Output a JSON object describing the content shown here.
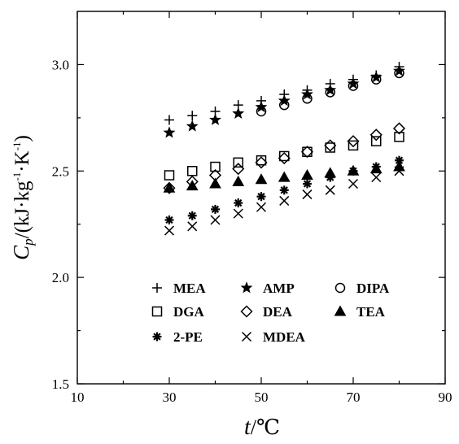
{
  "chart_data": {
    "type": "scatter",
    "xlabel": "t/°C",
    "ylabel": "Cp/(kJ·kg-1·K-1)",
    "xlim": [
      10,
      90
    ],
    "ylim": [
      1.5,
      3.25
    ],
    "xticks": [
      10,
      30,
      50,
      70,
      90
    ],
    "xticks_minor": [
      20,
      40,
      60,
      80
    ],
    "yticks": [
      1.5,
      2.0,
      2.5,
      3.0
    ],
    "yticks_minor": [
      1.75,
      2.25,
      2.75
    ],
    "xtick_labels": [
      "10",
      "30",
      "50",
      "70",
      "90"
    ],
    "ytick_labels": [
      "1.5",
      "2.0",
      "2.5",
      "3.0"
    ],
    "grid": false,
    "legend_position": "bottom-center",
    "x": [
      30,
      35,
      40,
      45,
      50,
      55,
      60,
      65,
      70,
      75,
      80
    ],
    "series": [
      {
        "name": "MEA",
        "marker": "plus",
        "values": [
          2.74,
          2.76,
          2.78,
          2.81,
          2.83,
          2.86,
          2.88,
          2.91,
          2.93,
          2.95,
          2.99
        ]
      },
      {
        "name": "AMP",
        "marker": "star",
        "values": [
          2.68,
          2.71,
          2.74,
          2.77,
          2.8,
          2.83,
          2.86,
          2.88,
          2.91,
          2.94,
          2.97
        ]
      },
      {
        "name": "DIPA",
        "marker": "circle",
        "x": [
          50,
          55,
          60,
          65,
          70,
          75,
          80
        ],
        "values": [
          2.78,
          2.81,
          2.84,
          2.87,
          2.9,
          2.93,
          2.96
        ]
      },
      {
        "name": "DGA",
        "marker": "square",
        "values": [
          2.48,
          2.5,
          2.52,
          2.54,
          2.55,
          2.57,
          2.59,
          2.61,
          2.62,
          2.64,
          2.66
        ]
      },
      {
        "name": "DEA",
        "marker": "diamond",
        "values": [
          2.42,
          2.45,
          2.48,
          2.51,
          2.54,
          2.56,
          2.59,
          2.62,
          2.64,
          2.67,
          2.7
        ]
      },
      {
        "name": "TEA",
        "marker": "triangle",
        "values": [
          2.42,
          2.43,
          2.44,
          2.45,
          2.46,
          2.47,
          2.48,
          2.49,
          2.5,
          2.51,
          2.52
        ]
      },
      {
        "name": "2-PE",
        "marker": "asterisk",
        "values": [
          2.27,
          2.29,
          2.32,
          2.35,
          2.38,
          2.41,
          2.44,
          2.47,
          2.5,
          2.52,
          2.55
        ]
      },
      {
        "name": "MDEA",
        "marker": "cross",
        "values": [
          2.22,
          2.24,
          2.27,
          2.3,
          2.33,
          2.36,
          2.39,
          2.41,
          2.44,
          2.47,
          2.5
        ]
      }
    ]
  },
  "axes": {
    "x_var": "t",
    "x_unit": "/℃",
    "y_var": "C",
    "y_sub": "p",
    "y_unit_pre": "/(kJ·kg",
    "y_exp1": "-1",
    "y_mid": "·K",
    "y_exp2": "-1",
    "y_close": ")"
  }
}
